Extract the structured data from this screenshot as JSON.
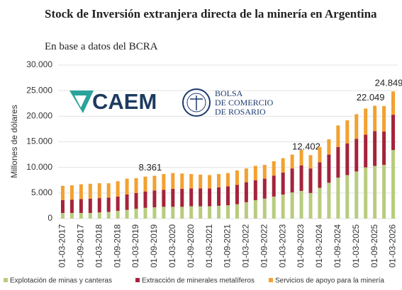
{
  "chart_data": {
    "type": "bar",
    "stacked": true,
    "title": "Stock de Inversión extranjera directa de la minería en Argentina",
    "subtitle": "En base a datos del BCRA",
    "y_label": "Millones de dólares",
    "categories": [
      "01-03-2017",
      null,
      "01-09-2017",
      null,
      "01-03-2018",
      null,
      "01-09-2018",
      null,
      "01-03-2019",
      null,
      "01-09-2019",
      null,
      "01-03-2020",
      null,
      "01-09-2020",
      null,
      "01-03-2021",
      null,
      "01-09-2021",
      null,
      "01-03-2022",
      null,
      "01-09-2022",
      null,
      "01-03-2023",
      null,
      "01-09-2023",
      null,
      "01-03-2024",
      null,
      "01-09-2024",
      null,
      "01-03-2025",
      null,
      "01-09-2025",
      null,
      "01-03-2026"
    ],
    "series": [
      {
        "name": "Explotación de minas y canteras",
        "color": "#b8cc7e",
        "values": [
          1100,
          1100,
          1100,
          1100,
          1200,
          1300,
          1500,
          1700,
          1900,
          2100,
          2200,
          2300,
          2300,
          2300,
          2400,
          2400,
          2400,
          2500,
          2600,
          2800,
          3200,
          3600,
          3900,
          4300,
          4700,
          5100,
          5400,
          5000,
          6000,
          7000,
          8000,
          8500,
          9200,
          10000,
          10300,
          10500,
          13400
        ]
      },
      {
        "name": "Extracción de minerales metalíferos",
        "color": "#a5233b",
        "values": [
          2500,
          2600,
          2700,
          2800,
          2800,
          2800,
          2800,
          3000,
          3100,
          3200,
          3300,
          3300,
          3500,
          3500,
          3500,
          3500,
          3500,
          3600,
          3700,
          3800,
          3900,
          3900,
          3900,
          4100,
          4300,
          4700,
          5000,
          4800,
          5000,
          5500,
          6000,
          6200,
          6400,
          6400,
          6800,
          6500,
          6900
        ]
      },
      {
        "name": "Servicios de apoyo para la minería",
        "color": "#f2a130",
        "values": [
          2800,
          2800,
          2900,
          2900,
          2900,
          2800,
          3000,
          3100,
          2900,
          2900,
          2861,
          3100,
          3100,
          3000,
          2800,
          2700,
          2600,
          2600,
          2600,
          2800,
          2700,
          2800,
          2700,
          2800,
          2800,
          2700,
          3000,
          2602,
          3000,
          3000,
          4200,
          4500,
          4800,
          5100,
          4949,
          5000,
          4549
        ]
      }
    ],
    "total_labels": {
      "values": [
        null,
        null,
        null,
        null,
        null,
        null,
        null,
        null,
        null,
        null,
        8361,
        null,
        null,
        null,
        null,
        null,
        null,
        null,
        null,
        null,
        null,
        null,
        null,
        null,
        null,
        null,
        null,
        12402,
        null,
        null,
        null,
        null,
        null,
        null,
        22049,
        null,
        24849
      ],
      "value_labels": [
        null,
        null,
        null,
        null,
        null,
        null,
        null,
        null,
        null,
        null,
        "8.361",
        null,
        null,
        null,
        null,
        null,
        null,
        null,
        null,
        null,
        null,
        null,
        null,
        null,
        null,
        null,
        null,
        "12.402",
        null,
        null,
        null,
        null,
        null,
        null,
        "22.049",
        null,
        "24.849"
      ]
    },
    "ylim": [
      0,
      30000
    ],
    "yticks": [
      0,
      {
        "value": 5000,
        "label": "5.000"
      },
      {
        "value": 10000,
        "label": "10.000"
      },
      {
        "value": 15000,
        "label": "15.000"
      },
      {
        "value": 20000,
        "label": "20.000"
      },
      {
        "value": 25000,
        "label": "25.000"
      },
      {
        "value": 30000,
        "label": "30.000"
      }
    ],
    "grid": true,
    "legend": "bottom",
    "logos": {
      "caem": "CAEM",
      "bcr": [
        "BOLSA",
        "DE COMERCIO",
        "DE ROSARIO"
      ]
    }
  }
}
